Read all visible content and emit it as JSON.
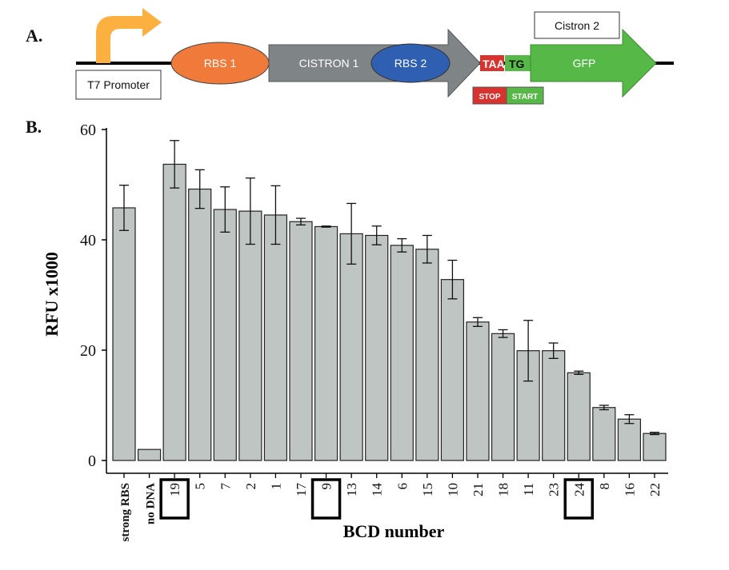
{
  "panel_a": {
    "letter": "A.",
    "promoter_label": "T7 Promoter",
    "rbs1_label": "RBS 1",
    "cistron1_label": "CISTRON 1",
    "rbs2_label": "RBS 2",
    "seq_taa": "TAA",
    "seq_tg": "TG",
    "gfp_label": "GFP",
    "cistron2_label": "Cistron 2",
    "stop_label": "STOP",
    "start_label": "START",
    "colors": {
      "promoter_arrow": "#FBB040",
      "rbs1": "#F07A3A",
      "cistron1": "#7F8487",
      "rbs2": "#2F5FB0",
      "stop": "#D8332F",
      "start_gfp": "#56B947"
    }
  },
  "panel_b": {
    "letter": "B."
  },
  "chart_data": {
    "type": "bar",
    "xlabel": "BCD number",
    "ylabel": "RFU x1000",
    "ylim": [
      0,
      60
    ],
    "yticks": [
      0,
      20,
      40,
      60
    ],
    "grid": false,
    "bar_color": "#BFC5C3",
    "categories": [
      "strong RBS",
      "no DNA",
      "19",
      "5",
      "7",
      "2",
      "1",
      "17",
      "9",
      "13",
      "14",
      "6",
      "15",
      "10",
      "21",
      "18",
      "11",
      "23",
      "24",
      "8",
      "16",
      "22"
    ],
    "values": [
      45.8,
      2.0,
      53.7,
      49.2,
      45.5,
      45.2,
      44.5,
      43.3,
      42.4,
      41.1,
      40.8,
      39.0,
      38.3,
      32.8,
      25.1,
      23.0,
      19.9,
      19.9,
      15.9,
      9.6,
      7.5,
      4.9
    ],
    "error": [
      4.1,
      0,
      4.3,
      3.5,
      4.1,
      6.0,
      5.3,
      0.6,
      0.1,
      5.5,
      1.7,
      1.2,
      2.5,
      3.5,
      0.8,
      0.7,
      5.5,
      1.4,
      0.3,
      0.4,
      0.8,
      0.2
    ],
    "highlighted": [
      "19",
      "9",
      "24"
    ]
  }
}
